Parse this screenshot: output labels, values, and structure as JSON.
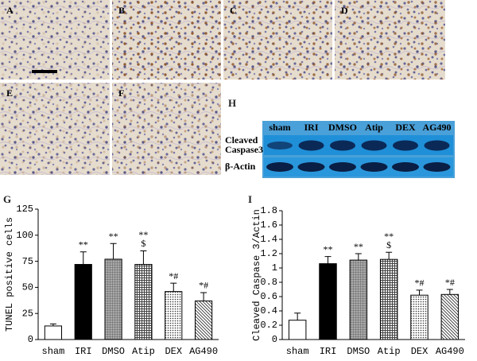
{
  "micrographs": {
    "labels": [
      "A",
      "B",
      "C",
      "D",
      "E",
      "F"
    ]
  },
  "blot": {
    "panel": "H",
    "lanes": [
      "sham",
      "IRI",
      "DMSO",
      "Atip",
      "DEX",
      "AG490"
    ],
    "rows": [
      {
        "label": [
          "Cleaved",
          "Caspase3"
        ]
      },
      {
        "label": [
          "β-Actin"
        ]
      }
    ]
  },
  "chart_data": [
    {
      "type": "bar",
      "panel": "G",
      "ylabel": "TUNEL positive cells",
      "categories": [
        "sham",
        "IRI",
        "DMSO",
        "Atip",
        "DEX",
        "AG490"
      ],
      "values": [
        13,
        72,
        77,
        72,
        46,
        37
      ],
      "errors": [
        2,
        12,
        15,
        13,
        8,
        8
      ],
      "annotations": [
        null,
        [
          "**"
        ],
        [
          "**"
        ],
        [
          "**",
          "$"
        ],
        [
          "*#"
        ],
        [
          "*#"
        ]
      ],
      "fills": [
        "white",
        "black",
        "grid",
        "crosshatch",
        "dots",
        "diagonal"
      ],
      "ylim": [
        0,
        125
      ],
      "yticks": [
        0,
        25,
        50,
        75,
        100,
        125
      ]
    },
    {
      "type": "bar",
      "panel": "I",
      "ylabel": "Cleaved Caspase 3/Actin",
      "categories": [
        "sham",
        "IRI",
        "DMSO",
        "Atip",
        "DEX",
        "AG490"
      ],
      "values": [
        0.27,
        1.06,
        1.11,
        1.12,
        0.62,
        0.63
      ],
      "errors": [
        0.1,
        0.1,
        0.09,
        0.1,
        0.07,
        0.07
      ],
      "annotations": [
        null,
        [
          "**"
        ],
        [
          "**"
        ],
        [
          "**",
          "$"
        ],
        [
          "*#"
        ],
        [
          "*#"
        ]
      ],
      "fills": [
        "white",
        "black",
        "grid",
        "crosshatch",
        "dots",
        "diagonal"
      ],
      "ylim": [
        0,
        1.8
      ],
      "yticks": [
        0,
        0.2,
        0.4,
        0.6,
        0.8,
        1,
        1.2,
        1.4,
        1.6,
        1.8
      ]
    }
  ]
}
